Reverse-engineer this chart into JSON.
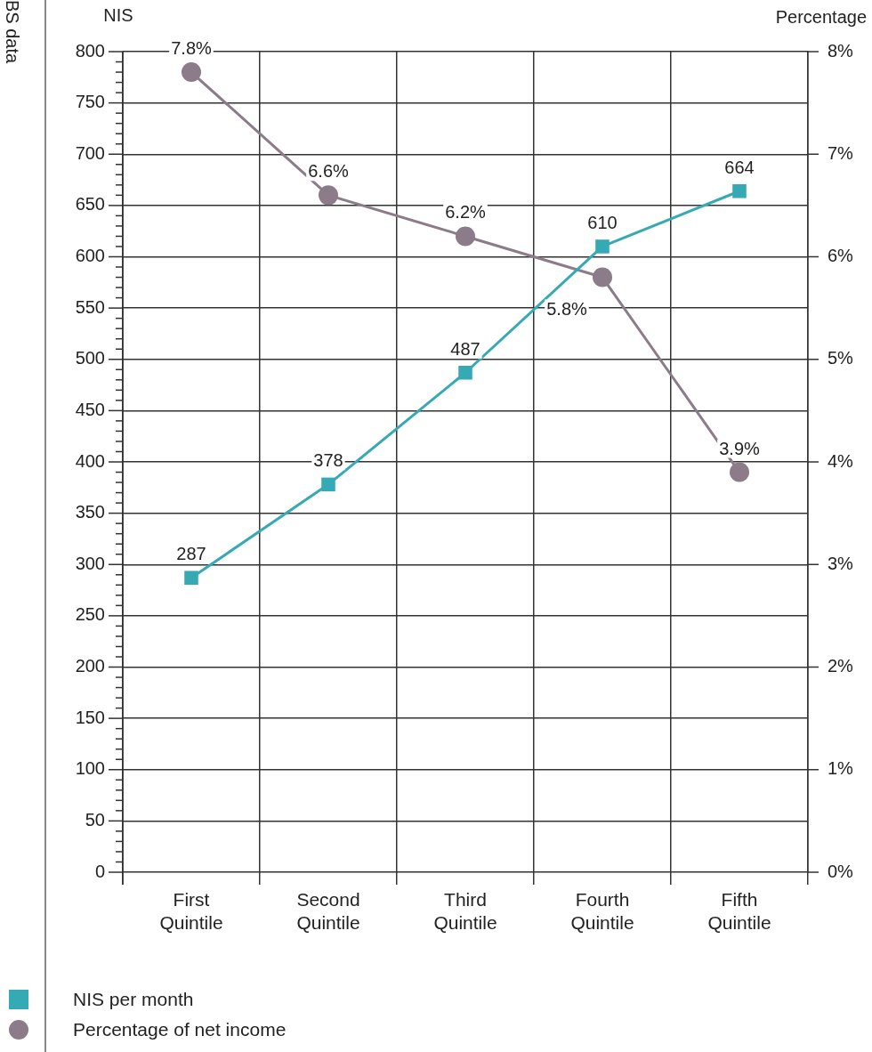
{
  "chart_data": {
    "type": "line",
    "ylabel": "NIS",
    "y2label": "Percentage",
    "annotations": [
      "BS data"
    ],
    "categories": [
      "First Quintile",
      "Second Quintile",
      "Third Quintile",
      "Fourth Quintile",
      "Fifth Quintile"
    ],
    "series": [
      {
        "name": "NIS per month",
        "color": "#35aab5",
        "marker": "square",
        "values": [
          287,
          378,
          487,
          610,
          664
        ],
        "value_labels": [
          "287",
          "378",
          "487",
          "610",
          "664"
        ]
      },
      {
        "name": "Percentage of net income",
        "color": "#8c7b88",
        "marker": "circle",
        "axis": "y2",
        "values": [
          7.8,
          6.6,
          6.2,
          5.8,
          3.9
        ],
        "value_labels": [
          "7.8%",
          "6.6%",
          "6.2%",
          "5.8%",
          "3.9%"
        ]
      }
    ],
    "ylim": [
      0,
      800
    ],
    "yticks": [
      0,
      {
        "value": 10,
        "label": null
      },
      {
        "value": 20,
        "label": null
      },
      {
        "value": 30,
        "label": null
      },
      {
        "value": 40,
        "label": null
      },
      50,
      {
        "value": 60,
        "label": null
      },
      {
        "value": 70,
        "label": null
      },
      {
        "value": 80,
        "label": null
      },
      {
        "value": 90,
        "label": null
      },
      100,
      {
        "value": 110,
        "label": null
      },
      {
        "value": 120,
        "label": null
      },
      {
        "value": 130,
        "label": null
      },
      {
        "value": 140,
        "label": null
      },
      150,
      {
        "value": 160,
        "label": null
      },
      {
        "value": 170,
        "label": null
      },
      {
        "value": 180,
        "label": null
      },
      {
        "value": 190,
        "label": null
      },
      200,
      {
        "value": 210,
        "label": null
      },
      {
        "value": 220,
        "label": null
      },
      {
        "value": 230,
        "label": null
      },
      {
        "value": 240,
        "label": null
      },
      250,
      {
        "value": 260,
        "label": null
      },
      {
        "value": 270,
        "label": null
      },
      {
        "value": 280,
        "label": null
      },
      {
        "value": 290,
        "label": null
      },
      300,
      {
        "value": 310,
        "label": null
      },
      {
        "value": 320,
        "label": null
      },
      {
        "value": 330,
        "label": null
      },
      {
        "value": 340,
        "label": null
      },
      350,
      {
        "value": 360,
        "label": null
      },
      {
        "value": 370,
        "label": null
      },
      {
        "value": 380,
        "label": null
      },
      {
        "value": 390,
        "label": null
      },
      400,
      {
        "value": 410,
        "label": null
      },
      {
        "value": 420,
        "label": null
      },
      {
        "value": 430,
        "label": null
      },
      {
        "value": 440,
        "label": null
      },
      450,
      {
        "value": 460,
        "label": null
      },
      {
        "value": 470,
        "label": null
      },
      {
        "value": 480,
        "label": null
      },
      {
        "value": 490,
        "label": null
      },
      500,
      {
        "value": 510,
        "label": null
      },
      {
        "value": 520,
        "label": null
      },
      {
        "value": 530,
        "label": null
      },
      {
        "value": 540,
        "label": null
      },
      550,
      {
        "value": 560,
        "label": null
      },
      {
        "value": 570,
        "label": null
      },
      {
        "value": 580,
        "label": null
      },
      {
        "value": 590,
        "label": null
      },
      600,
      {
        "value": 610,
        "label": null
      },
      {
        "value": 620,
        "label": null
      },
      {
        "value": 630,
        "label": null
      },
      {
        "value": 640,
        "label": null
      },
      650,
      {
        "value": 660,
        "label": null
      },
      {
        "value": 670,
        "label": null
      },
      {
        "value": 680,
        "label": null
      },
      {
        "value": 690,
        "label": null
      },
      700,
      {
        "value": 710,
        "label": null
      },
      {
        "value": 720,
        "label": null
      },
      {
        "value": 730,
        "label": null
      },
      {
        "value": 740,
        "label": null
      },
      750,
      {
        "value": 760,
        "label": null
      },
      {
        "value": 770,
        "label": null
      },
      {
        "value": 780,
        "label": null
      },
      {
        "value": 790,
        "label": null
      },
      800
    ],
    "y2lim": [
      0,
      8
    ],
    "y2ticks": [
      {
        "value": 0,
        "label": "0%"
      },
      {
        "value": 1,
        "label": "1%"
      },
      {
        "value": 2,
        "label": "2%"
      },
      {
        "value": 3,
        "label": "3%"
      },
      {
        "value": 4,
        "label": "4%"
      },
      {
        "value": 5,
        "label": "5%"
      },
      {
        "value": 6,
        "label": "6%"
      },
      {
        "value": 7,
        "label": "7%"
      },
      {
        "value": 8,
        "label": "8%"
      }
    ],
    "grid": true,
    "legend": "bottom left",
    "line_style": "solid"
  }
}
